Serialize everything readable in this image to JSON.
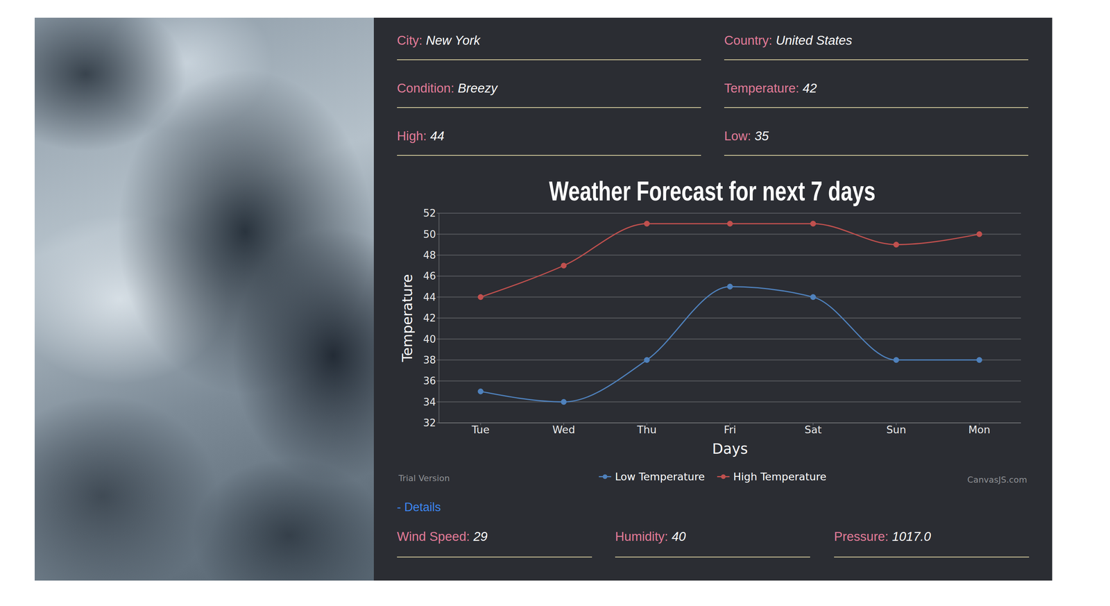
{
  "page": {
    "fields": [
      {
        "label": "City:",
        "value": "New York"
      },
      {
        "label": "Country:",
        "value": "United States"
      },
      {
        "label": "Condition:",
        "value": "Breezy"
      },
      {
        "label": "Temperature:",
        "value": "42"
      },
      {
        "label": "High:",
        "value": "44"
      },
      {
        "label": "Low:",
        "value": "35"
      }
    ],
    "details_link": "- Details",
    "details": [
      {
        "label": "Wind Speed:",
        "value": "29"
      },
      {
        "label": "Humidity:",
        "value": "40"
      },
      {
        "label": "Pressure:",
        "value": "1017.0"
      }
    ],
    "watermarks": [
      "Trial Version",
      "CanvasJS.com"
    ]
  },
  "chart_data": {
    "type": "line",
    "title": "Weather Forecast for next 7 days",
    "x_label": "Days",
    "y_label": "Temperature",
    "categories": [
      "Tue",
      "Wed",
      "Thu",
      "Fri",
      "Sat",
      "Sun",
      "Mon"
    ],
    "series": [
      {
        "name": "Low Temperature",
        "color": "#4f81bc",
        "values": [
          35,
          34,
          38,
          45,
          44,
          38,
          38
        ]
      },
      {
        "name": "High Temperature",
        "color": "#c0504e",
        "values": [
          44,
          47,
          51,
          51,
          51,
          49,
          50
        ]
      }
    ],
    "ylim": [
      32,
      52
    ],
    "yticks": [
      32,
      34,
      36,
      38,
      40,
      42,
      44,
      46,
      48,
      50,
      52
    ],
    "grid": true,
    "legend": "bottom",
    "marker": "circle",
    "line_style": "solid"
  }
}
